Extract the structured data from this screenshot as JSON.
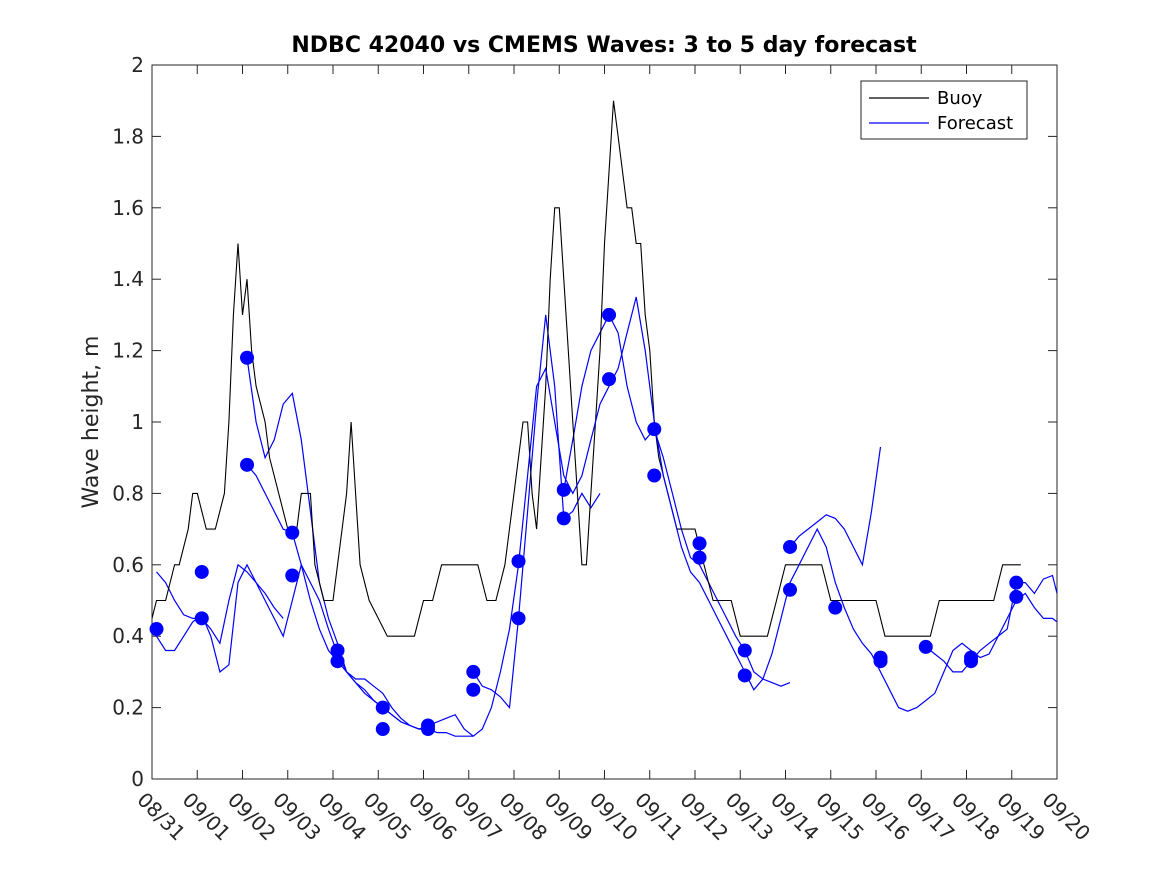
{
  "chart_data": {
    "type": "line",
    "title": "NDBC 42040 vs CMEMS Waves: 3 to 5 day forecast",
    "xlabel": "",
    "ylabel": "Wave height, m",
    "xlim": [
      0,
      20
    ],
    "ylim": [
      0,
      2
    ],
    "x_tick_values": [
      0,
      1,
      2,
      3,
      4,
      5,
      6,
      7,
      8,
      9,
      10,
      11,
      12,
      13,
      14,
      15,
      16,
      17,
      18,
      19,
      20
    ],
    "x_tick_labels": [
      "08/31",
      "09/01",
      "09/02",
      "09/03",
      "09/04",
      "09/05",
      "09/06",
      "09/07",
      "09/08",
      "09/09",
      "09/10",
      "09/11",
      "09/12",
      "09/13",
      "09/14",
      "09/15",
      "09/16",
      "09/17",
      "09/18",
      "09/19",
      "09/20"
    ],
    "y_ticks": [
      0,
      0.2,
      0.4,
      0.6,
      0.8,
      1,
      1.2,
      1.4,
      1.6,
      1.8,
      2
    ],
    "y_tick_labels": [
      "0",
      "0.2",
      "0.4",
      "0.6",
      "0.8",
      "1",
      "1.2",
      "1.4",
      "1.6",
      "1.8",
      "2"
    ],
    "legend": {
      "location": "top-right",
      "entries": [
        {
          "name": "Buoy",
          "color": "#000000"
        },
        {
          "name": "Forecast",
          "color": "#0000ff"
        }
      ]
    },
    "colors": {
      "buoy": "#000000",
      "forecast": "#0000ff",
      "marker": "#0000ff"
    },
    "series": [
      {
        "name": "Buoy",
        "x": [
          0,
          0.1,
          0.3,
          0.5,
          0.6,
          0.8,
          0.9,
          1.0,
          1.2,
          1.4,
          1.6,
          1.7,
          1.8,
          1.9,
          2.0,
          2.1,
          2.2,
          2.3,
          2.5,
          2.6,
          2.8,
          3.0,
          3.2,
          3.3,
          3.5,
          3.6,
          3.8,
          4.0,
          4.2,
          4.3,
          4.4,
          4.5,
          4.6,
          4.8,
          5.0,
          5.2,
          5.4,
          5.5,
          5.6,
          5.8,
          6.0,
          6.2,
          6.4,
          6.6,
          6.8,
          7.0,
          7.2,
          7.4,
          7.6,
          7.8,
          8.0,
          8.1,
          8.2,
          8.3,
          8.4,
          8.5,
          8.6,
          8.7,
          8.8,
          8.9,
          9.0,
          9.1,
          9.2,
          9.3,
          9.4,
          9.5,
          9.6,
          9.7,
          9.8,
          9.9,
          10.0,
          10.1,
          10.2,
          10.3,
          10.4,
          10.5,
          10.6,
          10.7,
          10.8,
          10.9,
          11.0,
          11.1,
          11.2,
          11.4,
          11.6,
          11.8,
          12.0,
          12.2,
          12.4,
          12.6,
          12.8,
          13.0,
          13.2,
          13.4,
          13.6,
          13.8,
          14.0,
          14.2,
          14.4,
          14.6,
          14.8,
          15.0,
          15.2,
          15.4,
          15.6,
          15.8,
          16.0,
          16.2,
          16.4,
          16.6,
          16.8,
          17.0,
          17.2,
          17.4,
          17.6,
          17.8,
          18.0,
          18.2,
          18.4,
          18.6,
          18.8,
          19.0,
          19.1,
          19.2
        ],
        "y": [
          0.45,
          0.5,
          0.5,
          0.6,
          0.6,
          0.7,
          0.8,
          0.8,
          0.7,
          0.7,
          0.8,
          1.0,
          1.3,
          1.5,
          1.3,
          1.4,
          1.2,
          1.1,
          1.0,
          0.9,
          0.8,
          0.7,
          0.7,
          0.8,
          0.8,
          0.6,
          0.5,
          0.5,
          0.7,
          0.8,
          1.0,
          0.8,
          0.6,
          0.5,
          0.45,
          0.4,
          0.4,
          0.4,
          0.4,
          0.4,
          0.5,
          0.5,
          0.6,
          0.6,
          0.6,
          0.6,
          0.6,
          0.5,
          0.5,
          0.6,
          0.8,
          0.9,
          1.0,
          1.0,
          0.8,
          0.7,
          0.9,
          1.1,
          1.4,
          1.6,
          1.6,
          1.4,
          1.2,
          1.0,
          0.8,
          0.6,
          0.6,
          0.8,
          1.0,
          1.2,
          1.5,
          1.7,
          1.9,
          1.8,
          1.7,
          1.6,
          1.6,
          1.5,
          1.5,
          1.3,
          1.2,
          1.0,
          0.9,
          0.8,
          0.7,
          0.7,
          0.7,
          0.6,
          0.5,
          0.5,
          0.5,
          0.4,
          0.4,
          0.4,
          0.4,
          0.5,
          0.6,
          0.6,
          0.6,
          0.6,
          0.6,
          0.5,
          0.5,
          0.5,
          0.5,
          0.5,
          0.5,
          0.4,
          0.4,
          0.4,
          0.4,
          0.4,
          0.4,
          0.5,
          0.5,
          0.5,
          0.5,
          0.5,
          0.5,
          0.5,
          0.6,
          0.6,
          0.6,
          0.6
        ],
        "color": "#000000"
      },
      {
        "name": "Forecast",
        "x": [
          0,
          0.1,
          0.3,
          0.5,
          0.7,
          0.9,
          1.1,
          1.3,
          1.5,
          1.7,
          1.9,
          2.1,
          2.3,
          2.5,
          2.7,
          2.9,
          3.1,
          3.3,
          3.5,
          3.7,
          3.9,
          4.1,
          4.3,
          4.5,
          4.7,
          4.9,
          5.1,
          5.3,
          5.5,
          5.7,
          5.9,
          6.1,
          6.3,
          6.5,
          6.7,
          6.9,
          7.1,
          7.3,
          7.5,
          7.7,
          7.9,
          8.1,
          8.3,
          8.5,
          8.7,
          8.9,
          9.1,
          9.3,
          9.5,
          9.7,
          9.9,
          10.1,
          10.3,
          10.5,
          10.7,
          10.9,
          11.1,
          11.3,
          11.5,
          11.7,
          11.9,
          12.1,
          12.3,
          12.5,
          12.7,
          12.9,
          13.1,
          13.3,
          13.5,
          13.7,
          13.9,
          14.1,
          14.3,
          14.5,
          14.7,
          14.9,
          15.1,
          15.3,
          15.5,
          15.7,
          15.9,
          16.1,
          16.3,
          16.5,
          16.7,
          16.9,
          17.1,
          17.3,
          17.5,
          17.7,
          17.9,
          18.1,
          18.3,
          18.5,
          18.7,
          18.9,
          19.1,
          19.3,
          19.5,
          19.7,
          19.9,
          20.0
        ],
        "y": [
          0.42,
          0.4,
          0.36,
          0.36,
          0.4,
          0.44,
          0.46,
          0.4,
          0.3,
          0.32,
          0.55,
          0.6,
          0.55,
          0.5,
          0.45,
          0.4,
          0.5,
          0.6,
          0.55,
          0.5,
          0.42,
          0.35,
          0.3,
          0.27,
          0.25,
          0.22,
          0.2,
          0.18,
          0.16,
          0.15,
          0.14,
          0.14,
          0.13,
          0.13,
          0.12,
          0.12,
          0.12,
          0.14,
          0.2,
          0.3,
          0.42,
          0.6,
          0.85,
          1.1,
          1.15,
          1.0,
          0.85,
          0.8,
          0.85,
          0.95,
          1.05,
          1.1,
          1.15,
          1.25,
          1.35,
          1.2,
          1.0,
          0.85,
          0.75,
          0.65,
          0.58,
          0.55,
          0.5,
          0.45,
          0.4,
          0.35,
          0.3,
          0.25,
          0.28,
          0.35,
          0.45,
          0.55,
          0.6,
          0.65,
          0.7,
          0.65,
          0.55,
          0.48,
          0.42,
          0.38,
          0.35,
          0.3,
          0.25,
          0.2,
          0.19,
          0.2,
          0.22,
          0.24,
          0.3,
          0.36,
          0.38,
          0.36,
          0.34,
          0.35,
          0.4,
          0.45,
          0.5,
          0.52,
          0.48,
          0.45,
          0.45,
          0.44
        ],
        "color": "#0000ff"
      }
    ],
    "extra_forecast_lines": [
      {
        "name": "Forecast",
        "x": [
          0.1,
          0.3,
          0.5,
          0.7,
          0.9,
          1.1,
          1.3,
          1.5,
          1.7,
          1.9,
          2.1,
          2.3,
          2.5,
          2.7,
          2.9
        ],
        "y": [
          0.58,
          0.55,
          0.5,
          0.46,
          0.45,
          0.45,
          0.42,
          0.38,
          0.5,
          0.6,
          0.58,
          0.55,
          0.52,
          0.48,
          0.45
        ]
      },
      {
        "name": "Forecast",
        "x": [
          2.1,
          2.3,
          2.5,
          2.7,
          2.9,
          3.1,
          3.3,
          3.5,
          3.7,
          3.9,
          4.1,
          4.3,
          4.5,
          4.7,
          4.9,
          5.1,
          5.3,
          5.5,
          5.7,
          5.9,
          6.1,
          6.3,
          6.5,
          6.7,
          6.9,
          7.1
        ],
        "y": [
          1.18,
          1.0,
          0.9,
          0.95,
          1.05,
          1.08,
          0.95,
          0.75,
          0.55,
          0.45,
          0.38,
          0.3,
          0.28,
          0.28,
          0.26,
          0.24,
          0.2,
          0.17,
          0.15,
          0.14,
          0.15,
          0.16,
          0.17,
          0.18,
          0.14,
          0.12
        ]
      },
      {
        "name": "Forecast",
        "x": [
          2.1,
          2.3,
          2.5,
          2.7,
          2.9,
          3.1,
          3.3,
          3.5,
          3.7,
          3.9,
          4.1,
          4.3,
          4.5,
          4.7,
          4.9,
          5.1,
          5.3,
          5.5,
          5.7,
          5.9,
          6.1
        ],
        "y": [
          0.88,
          0.85,
          0.8,
          0.75,
          0.7,
          0.69,
          0.6,
          0.5,
          0.42,
          0.36,
          0.33,
          0.3,
          0.27,
          0.24,
          0.22,
          0.2,
          0.18,
          0.16,
          0.15,
          0.14,
          0.14
        ]
      },
      {
        "name": "Forecast",
        "x": [
          7.1,
          7.3,
          7.5,
          7.7,
          7.9,
          8.1,
          8.3,
          8.5,
          8.7,
          8.9,
          9.1,
          9.3,
          9.5,
          9.7,
          9.9
        ],
        "y": [
          0.3,
          0.26,
          0.25,
          0.23,
          0.2,
          0.45,
          0.75,
          1.05,
          1.3,
          1.1,
          0.73,
          0.75,
          0.8,
          0.76,
          0.8
        ]
      },
      {
        "name": "Forecast",
        "x": [
          9.1,
          9.3,
          9.5,
          9.7,
          9.9,
          10.1,
          10.3,
          10.5,
          10.7,
          10.9,
          11.1,
          11.3,
          11.5,
          11.7,
          11.9,
          12.1,
          12.3,
          12.5,
          12.7,
          12.9,
          13.1,
          13.3,
          13.5,
          13.7,
          13.9,
          14.1
        ],
        "y": [
          0.81,
          0.95,
          1.1,
          1.2,
          1.25,
          1.3,
          1.25,
          1.1,
          1.0,
          0.95,
          0.98,
          0.9,
          0.8,
          0.7,
          0.62,
          0.6,
          0.55,
          0.5,
          0.45,
          0.4,
          0.36,
          0.3,
          0.28,
          0.27,
          0.26,
          0.27
        ]
      },
      {
        "name": "Forecast",
        "x": [
          14.1,
          14.3,
          14.5,
          14.7,
          14.9,
          15.1,
          15.3,
          15.5,
          15.7,
          15.9,
          16.1
        ],
        "y": [
          0.65,
          0.68,
          0.7,
          0.72,
          0.74,
          0.73,
          0.7,
          0.65,
          0.6,
          0.75,
          0.93
        ]
      },
      {
        "name": "Forecast",
        "x": [
          17.1,
          17.3,
          17.5,
          17.7,
          17.9,
          18.1,
          18.3,
          18.5,
          18.7,
          18.9,
          19.1,
          19.3,
          19.5,
          19.7,
          19.9,
          20.0
        ],
        "y": [
          0.37,
          0.35,
          0.33,
          0.3,
          0.3,
          0.33,
          0.36,
          0.38,
          0.4,
          0.42,
          0.55,
          0.55,
          0.52,
          0.56,
          0.57,
          0.52
        ]
      }
    ],
    "forecast_markers": {
      "x": [
        0.1,
        1.1,
        1.1,
        2.1,
        2.1,
        3.1,
        3.1,
        4.1,
        4.1,
        5.1,
        5.1,
        6.1,
        6.1,
        7.1,
        7.1,
        8.1,
        8.1,
        9.1,
        9.1,
        10.1,
        10.1,
        11.1,
        11.1,
        12.1,
        12.1,
        13.1,
        13.1,
        14.1,
        14.1,
        15.1,
        16.1,
        16.1,
        17.1,
        18.1,
        18.1,
        19.1,
        19.1
      ],
      "y": [
        0.42,
        0.58,
        0.45,
        1.18,
        0.88,
        0.69,
        0.57,
        0.36,
        0.33,
        0.2,
        0.14,
        0.15,
        0.14,
        0.3,
        0.25,
        0.61,
        0.45,
        0.81,
        0.73,
        1.3,
        1.12,
        0.98,
        0.85,
        0.66,
        0.62,
        0.36,
        0.29,
        0.65,
        0.53,
        0.48,
        0.34,
        0.33,
        0.37,
        0.34,
        0.33,
        0.55,
        0.51
      ]
    }
  }
}
